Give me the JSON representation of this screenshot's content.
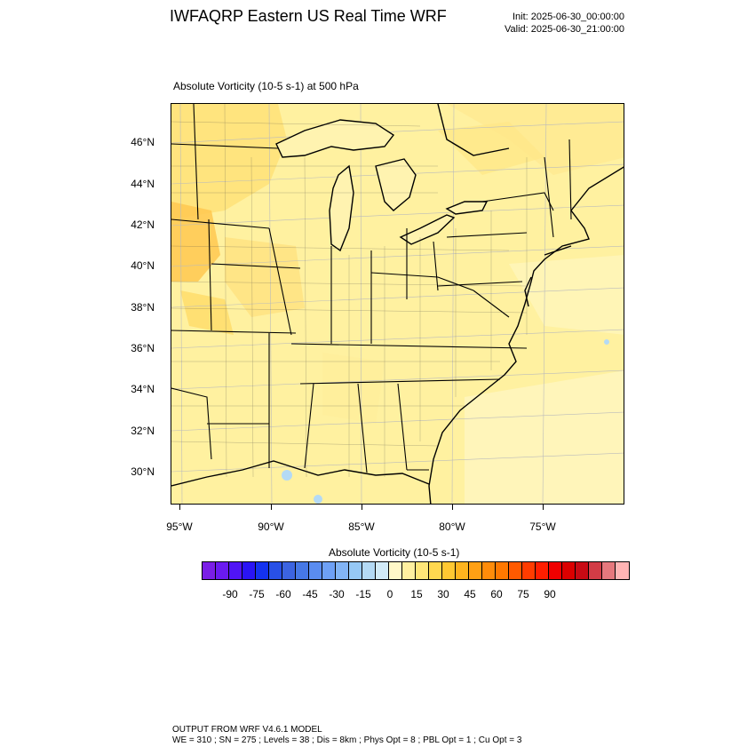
{
  "header": {
    "title": "IWFAQRP Eastern US Real Time WRF",
    "init": "Init: 2025-06-30_00:00:00",
    "valid": "Valid: 2025-06-30_21:00:00"
  },
  "map": {
    "subtitle": "Absolute Vorticity   (10-5 s-1)     at   500 hPa",
    "lat_labels": [
      "46°N",
      "44°N",
      "42°N",
      "40°N",
      "38°N",
      "36°N",
      "34°N",
      "32°N",
      "30°N"
    ],
    "lon_labels": [
      "95°W",
      "90°W",
      "85°W",
      "80°W",
      "75°W"
    ]
  },
  "colorbar": {
    "title": "Absolute Vorticity  (10-5 s-1)",
    "labels": [
      "-90",
      "-75",
      "-60",
      "-45",
      "-30",
      "-15",
      "0",
      "15",
      "30",
      "45",
      "60",
      "75",
      "90"
    ],
    "colors": [
      "#7a1ee6",
      "#6a1af0",
      "#5014f5",
      "#2a14f5",
      "#1432f0",
      "#2850e6",
      "#3c64e1",
      "#4678e6",
      "#5a8cf0",
      "#6ea0f5",
      "#82b4f5",
      "#96c8f5",
      "#b4daf5",
      "#d2ebf8",
      "#fff8c8",
      "#fff0a0",
      "#ffe678",
      "#ffd850",
      "#ffc832",
      "#ffb41e",
      "#ffa014",
      "#ff8c0a",
      "#ff7800",
      "#ff5a00",
      "#ff3c00",
      "#ff1e00",
      "#f00000",
      "#dc0000",
      "#c80a14",
      "#d23c46",
      "#e6787d",
      "#ffb4b4"
    ]
  },
  "footer": {
    "line1": "OUTPUT FROM WRF V4.6.1 MODEL",
    "line2": "WE = 310 ; SN = 275 ; Levels = 38 ; Dis = 8km ; Phys Opt = 8 ; PBL Opt = 1 ; Cu Opt = 3"
  }
}
